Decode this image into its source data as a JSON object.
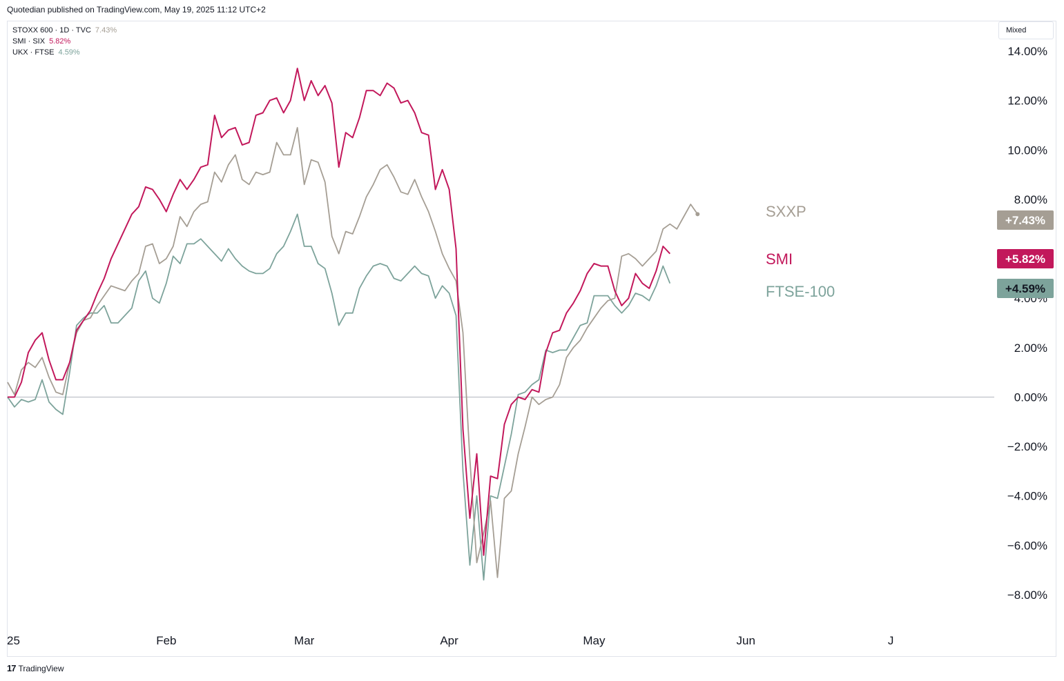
{
  "header": {
    "text": "Quotedian published on TradingView.com, May 19, 2025 11:12 UTC+2"
  },
  "legend": [
    {
      "symbol": "STOXX 600 · 1D · TVC",
      "value": "7.43%",
      "color": "#a59e94"
    },
    {
      "symbol": "SMI · SIX",
      "value": "5.82%",
      "color": "#c2185b"
    },
    {
      "symbol": "UKX · FTSE",
      "value": "4.59%",
      "color": "#7da39b"
    }
  ],
  "toolbar": {
    "mode_label": "Mixed"
  },
  "footer": {
    "logo_text": "TradingView",
    "logo_mark": "17"
  },
  "chart_data": {
    "type": "line",
    "ylim": [
      -9.2,
      15.2
    ],
    "yticks": [
      14,
      12,
      10,
      8,
      4,
      2,
      0,
      -2,
      -4,
      -6,
      -8
    ],
    "ytick_labels": [
      "14.00%",
      "12.00%",
      "10.00%",
      "8.00%",
      "4.00%",
      "2.00%",
      "0.00%",
      "−2.00%",
      "−4.00%",
      "−6.00%",
      "−8.00%"
    ],
    "xrange": [
      0,
      143
    ],
    "xticks": [
      {
        "label": "25",
        "x": 0
      },
      {
        "label": "Feb",
        "x": 23
      },
      {
        "label": "Mar",
        "x": 43
      },
      {
        "label": "Apr",
        "x": 64
      },
      {
        "label": "May",
        "x": 85
      },
      {
        "label": "Jun",
        "x": 107
      },
      {
        "label": "J",
        "x": 128
      }
    ],
    "zero_line": true,
    "series": [
      {
        "name": "SXXP",
        "badge": "+7.43%",
        "color": "#a59e94",
        "text_color": "#ffffff",
        "label_color": "#a59e94",
        "last_marker": true,
        "values": [
          0.6,
          0.1,
          1.1,
          1.4,
          1.2,
          1.6,
          0.8,
          0.2,
          0.1,
          1.4,
          2.6,
          3.1,
          3.2,
          3.7,
          4.1,
          4.5,
          4.4,
          4.3,
          4.7,
          5.0,
          6.1,
          6.2,
          5.4,
          5.6,
          6.1,
          7.3,
          6.9,
          7.5,
          7.8,
          7.9,
          9.1,
          8.7,
          9.4,
          9.8,
          8.8,
          8.6,
          9.1,
          9.0,
          9.1,
          10.3,
          9.8,
          9.8,
          10.9,
          8.6,
          9.6,
          9.5,
          8.7,
          6.5,
          5.8,
          6.7,
          6.6,
          7.3,
          8.1,
          8.6,
          9.2,
          9.4,
          8.9,
          8.3,
          8.2,
          8.8,
          8.1,
          7.5,
          6.7,
          5.8,
          5.2,
          4.7,
          2.6,
          -2.5,
          -6.7,
          -5.5,
          -4.2,
          -7.3,
          -4.1,
          -3.8,
          -2.3,
          -1.2,
          0,
          -0.3,
          -0.1,
          0,
          0.5,
          1.6,
          2.0,
          2.3,
          2.8,
          3.2,
          3.6,
          3.9,
          4.0,
          5.7,
          5.8,
          5.6,
          5.3,
          5.6,
          5.9,
          6.8,
          7.0,
          6.8,
          7.3,
          7.8,
          7.4
        ]
      },
      {
        "name": "SMI",
        "badge": "+5.82%",
        "color": "#c2185b",
        "text_color": "#ffffff",
        "label_color": "#c2185b",
        "last_marker": false,
        "values": [
          0,
          0,
          0.6,
          1.8,
          2.3,
          2.6,
          1.5,
          0.7,
          0.7,
          1.4,
          2.7,
          3.1,
          3.5,
          4.2,
          4.8,
          5.6,
          6.2,
          6.8,
          7.4,
          7.7,
          8.5,
          8.4,
          8.0,
          7.5,
          8.2,
          8.8,
          8.4,
          8.8,
          9.3,
          9.4,
          11.4,
          10.5,
          10.8,
          10.9,
          10.2,
          10.3,
          11.4,
          11.5,
          12.0,
          12.1,
          11.5,
          12.0,
          13.3,
          12.0,
          12.8,
          12.2,
          12.6,
          11.9,
          9.3,
          10.7,
          10.5,
          11.3,
          12.4,
          12.4,
          12.2,
          12.7,
          12.5,
          11.9,
          12.0,
          11.5,
          10.7,
          10.6,
          8.4,
          9.2,
          8.4,
          6.0,
          -1.3,
          -4.9,
          -2.3,
          -6.4,
          -3.2,
          -3.3,
          -1.1,
          -0.3,
          0,
          -0.1,
          0.3,
          0.2,
          1.8,
          2.6,
          2.7,
          3.4,
          3.8,
          4.3,
          5.0,
          5.4,
          5.3,
          5.3,
          4.3,
          3.7,
          4.0,
          5.0,
          4.6,
          4.4,
          5.1,
          6.1,
          5.8
        ]
      },
      {
        "name": "FTSE-100",
        "badge": "+4.59%",
        "color": "#7da39b",
        "text_color": "#131722",
        "label_color": "#7da39b",
        "last_marker": false,
        "values": [
          0,
          -0.4,
          -0.1,
          -0.2,
          -0.1,
          0.7,
          -0.2,
          -0.5,
          -0.7,
          1.0,
          2.9,
          3.2,
          3.4,
          3.4,
          3.7,
          3.0,
          3.0,
          3.3,
          3.6,
          4.7,
          5.1,
          4.0,
          3.8,
          4.6,
          5.7,
          5.4,
          6.2,
          6.2,
          6.4,
          6.1,
          5.8,
          5.5,
          6.0,
          5.6,
          5.3,
          5.1,
          5.0,
          5.0,
          5.2,
          5.8,
          6.1,
          6.7,
          7.4,
          6.1,
          6.1,
          5.4,
          5.2,
          4.2,
          2.9,
          3.4,
          3.4,
          4.4,
          4.9,
          5.3,
          5.4,
          5.3,
          4.8,
          4.7,
          5.0,
          5.3,
          5.0,
          4.9,
          4.0,
          4.5,
          4.2,
          3.3,
          -3.0,
          -6.8,
          -4.0,
          -7.4,
          -4.0,
          -4.1,
          -2.8,
          -1.5,
          0.1,
          0.2,
          0.5,
          0.7,
          1.9,
          1.8,
          1.9,
          1.9,
          2.4,
          2.9,
          3.0,
          4.1,
          4.1,
          4.1,
          3.7,
          3.4,
          3.7,
          4.2,
          4.1,
          3.9,
          4.5,
          5.3,
          4.6
        ]
      }
    ]
  }
}
